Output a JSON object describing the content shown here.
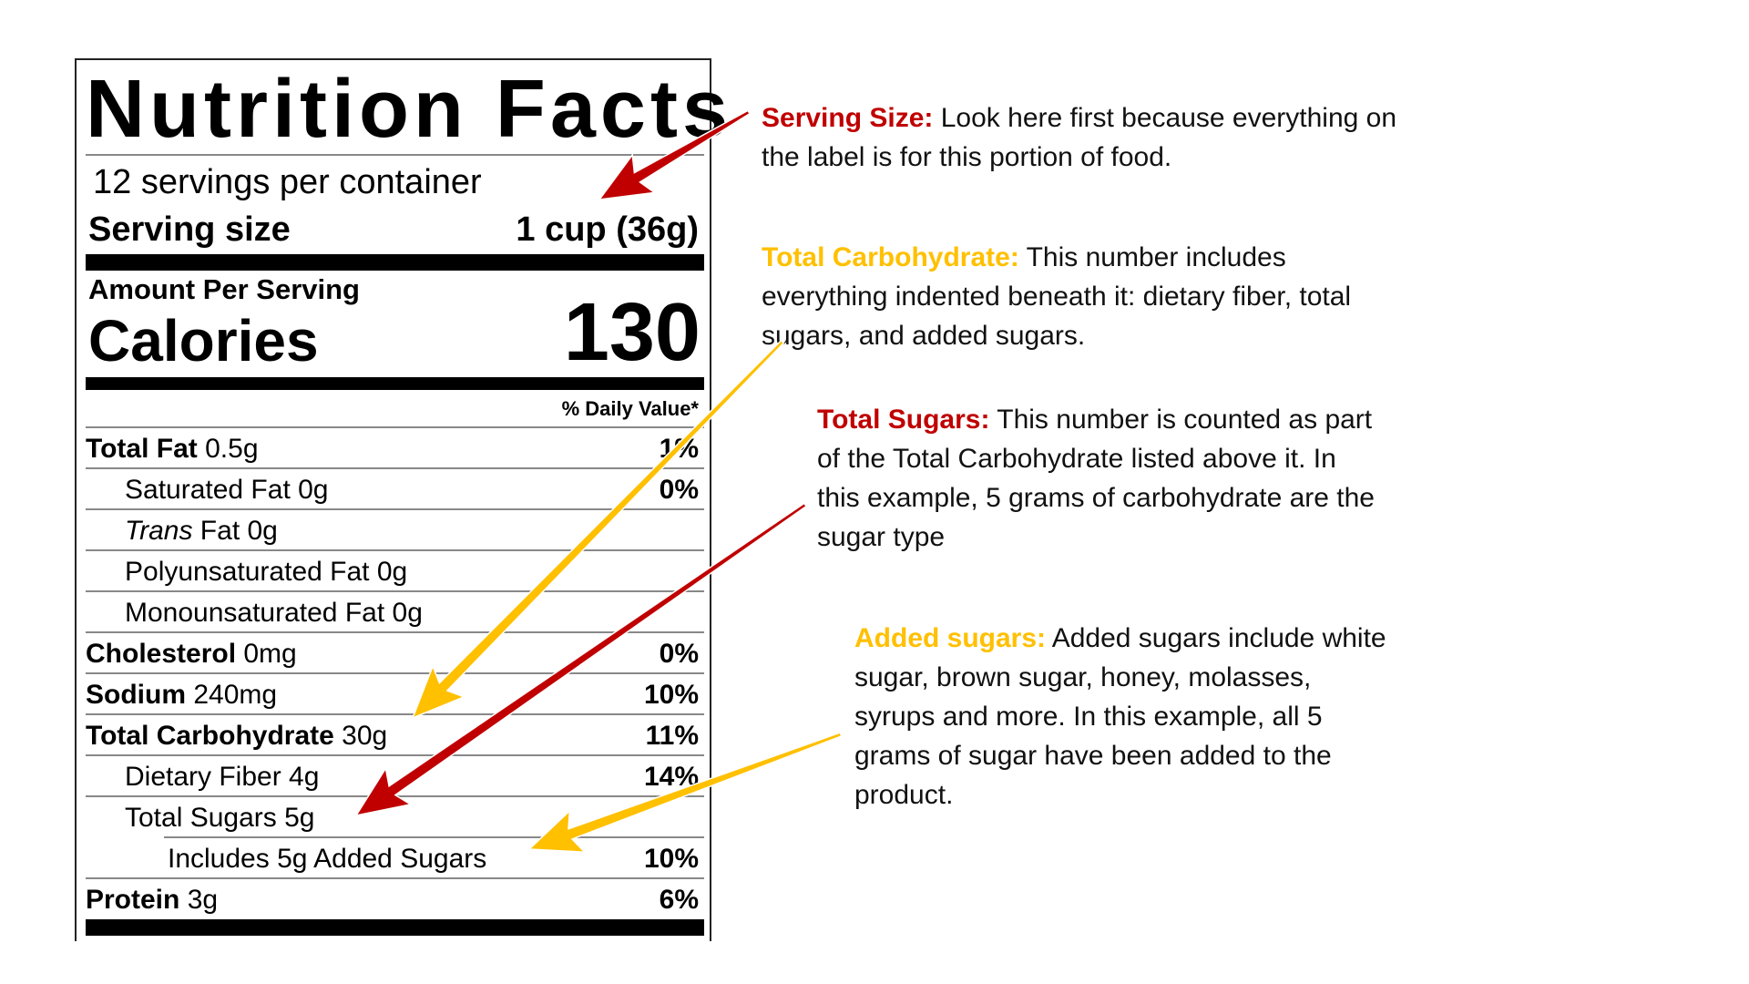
{
  "label": {
    "title": "Nutrition Facts",
    "servings": "12 servings per container",
    "serving_size_label": "Serving size",
    "serving_size_value": "1 cup (36g)",
    "amount_per_serving": "Amount Per Serving",
    "calories_label": "Calories",
    "calories_value": "130",
    "daily_value_header": "% Daily Value*",
    "rows": [
      {
        "bold": "Total Fat",
        "text": " 0.5g",
        "dv": "1%",
        "indent": 0
      },
      {
        "bold": "",
        "text": "Saturated Fat 0g",
        "dv": "0%",
        "indent": 1
      },
      {
        "bold": "",
        "italic": "Trans",
        "text": " Fat 0g",
        "dv": "",
        "indent": 1
      },
      {
        "bold": "",
        "text": "Polyunsaturated Fat 0g",
        "dv": "",
        "indent": 1
      },
      {
        "bold": "",
        "text": "Monounsaturated Fat 0g",
        "dv": "",
        "indent": 1
      },
      {
        "bold": "Cholesterol",
        "text": " 0mg",
        "dv": "0%",
        "indent": 0
      },
      {
        "bold": "Sodium",
        "text": " 240mg",
        "dv": "10%",
        "indent": 0
      },
      {
        "bold": "Total Carbohydrate",
        "text": " 30g",
        "dv": "11%",
        "indent": 0
      },
      {
        "bold": "",
        "text": "Dietary Fiber 4g",
        "dv": "14%",
        "indent": 1
      },
      {
        "bold": "",
        "text": "Total Sugars 5g",
        "dv": "",
        "indent": 1
      },
      {
        "bold": "",
        "text": "Includes 5g Added Sugars",
        "dv": "10%",
        "indent": 2
      },
      {
        "bold": "Protein",
        "text": " 3g",
        "dv": "6%",
        "indent": 0
      }
    ]
  },
  "annotations": [
    {
      "heading": "Serving Size:",
      "color": "#C00000",
      "lines": [
        " Look here first because everything on",
        "the label is for this portion of food."
      ]
    },
    {
      "heading": "Total Carbohydrate:",
      "color": "#FFC000",
      "lines": [
        " This number includes",
        "everything indented beneath it: dietary fiber, total",
        "sugars, and added sugars."
      ]
    },
    {
      "heading": "Total Sugars:",
      "color": "#C00000",
      "lines": [
        " This number is counted as part",
        "of the Total Carbohydrate listed above it. In",
        "this example, 5 grams of carbohydrate are the",
        "sugar type"
      ]
    },
    {
      "heading": "Added sugars:",
      "color": "#FFC000",
      "lines": [
        " Added sugars include white",
        "sugar, brown sugar, honey, molasses,",
        "syrups and more. In this example, all 5",
        "grams of sugar have been added to the",
        "product."
      ]
    }
  ],
  "colors": {
    "red": "#C00000",
    "yellow": "#FFC000"
  },
  "arrows": [
    {
      "name": "serving-size-arrow",
      "color": "red"
    },
    {
      "name": "total-carbohydrate-arrow",
      "color": "yellow"
    },
    {
      "name": "total-sugars-arrow",
      "color": "red"
    },
    {
      "name": "added-sugars-arrow",
      "color": "yellow"
    }
  ]
}
